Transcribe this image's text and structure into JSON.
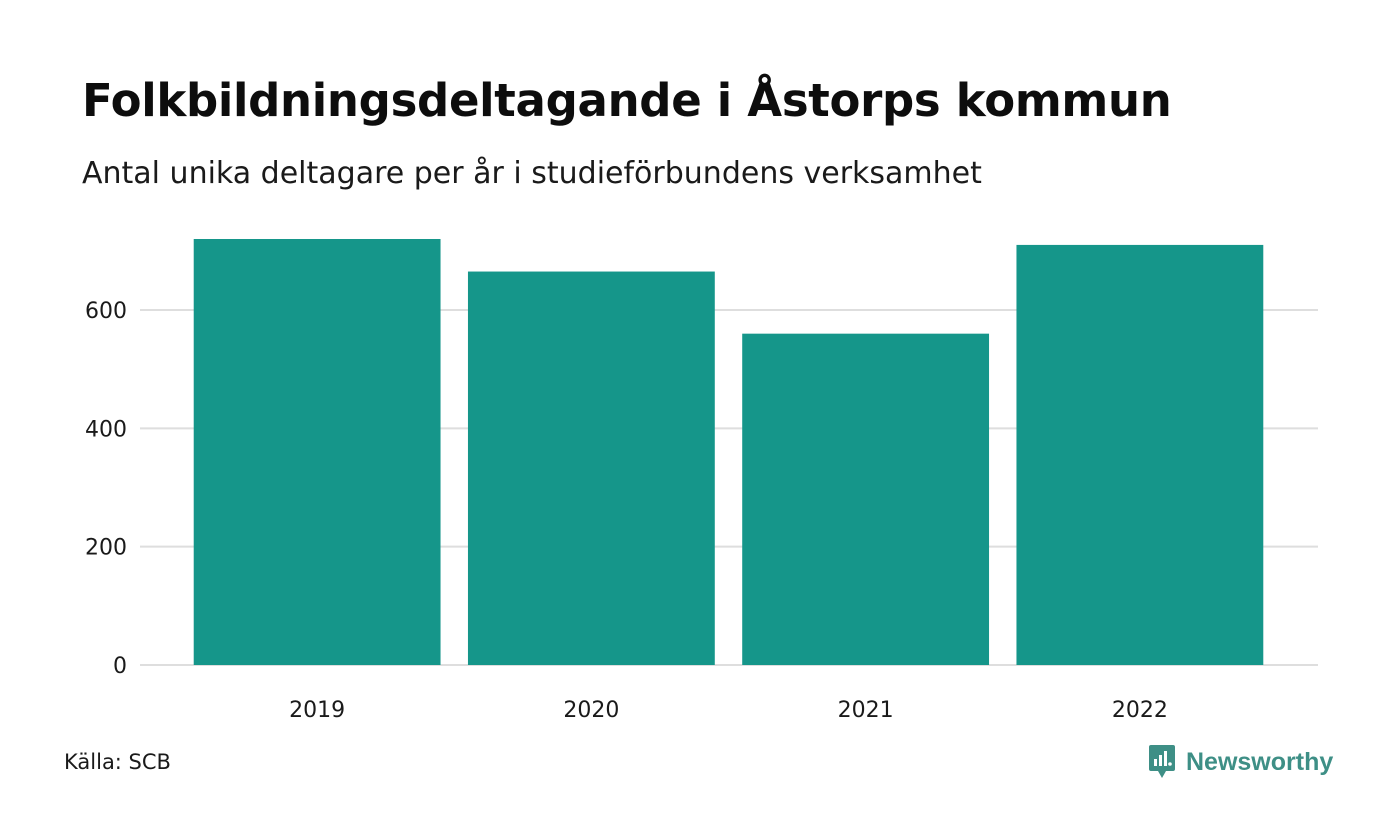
{
  "title": "Folkbildningsdeltagande i Åstorps kommun",
  "subtitle": "Antal unika deltagare per år i studieförbundens verksamhet",
  "source": "Källa: SCB",
  "brand": {
    "name": "Newsworthy",
    "icon": "newsworthy-logo-icon",
    "color": "#3e8f86"
  },
  "colors": {
    "bar": "#15968a",
    "grid": "#dedede",
    "tick_text": "#1a1a1a"
  },
  "chart_data": {
    "type": "bar",
    "categories": [
      "2019",
      "2020",
      "2021",
      "2022"
    ],
    "values": [
      720,
      665,
      560,
      710
    ],
    "title": "Folkbildningsdeltagande i Åstorps kommun",
    "subtitle": "Antal unika deltagare per år i studieförbundens verksamhet",
    "xlabel": "",
    "ylabel": "",
    "ylim": [
      0,
      720
    ],
    "yticks": [
      0,
      200,
      400,
      600
    ],
    "grid": true,
    "legend": "none"
  }
}
